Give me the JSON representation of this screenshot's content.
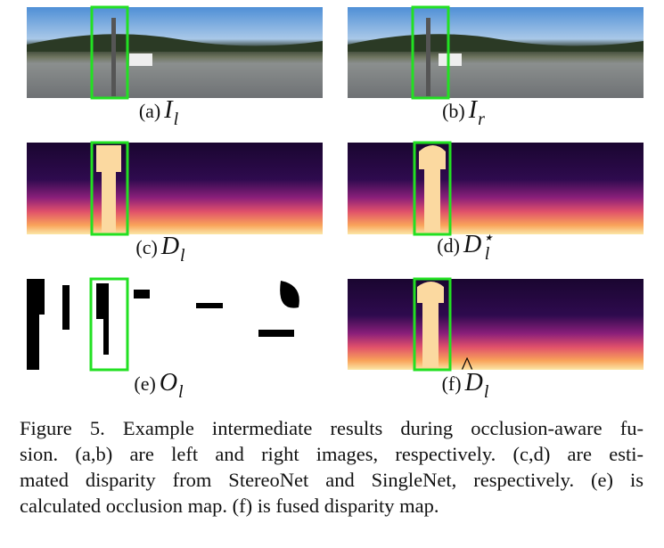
{
  "panels": [
    {
      "label": "(a)",
      "symbol": "I",
      "sub": "l"
    },
    {
      "label": "(b)",
      "symbol": "I",
      "sub": "r"
    },
    {
      "label": "(c)",
      "symbol": "D",
      "sub": "l"
    },
    {
      "label": "(d)",
      "symbol": "D",
      "sub": "l",
      "sup": "⋆"
    },
    {
      "label": "(e)",
      "symbol": "O",
      "sub": "l"
    },
    {
      "label": "(f)",
      "symbol": "D",
      "sub": "l",
      "accent": "^"
    }
  ],
  "caption": [
    "Figure 5. Example intermediate results during occlusion-aware fu-",
    "sion.  (a,b) are left and right images, respectively.  (c,d) are esti-",
    "mated disparity from StereoNet and SingleNet, respectively. (e) is",
    "calculated occlusion map.  (f) is fused disparity map."
  ]
}
